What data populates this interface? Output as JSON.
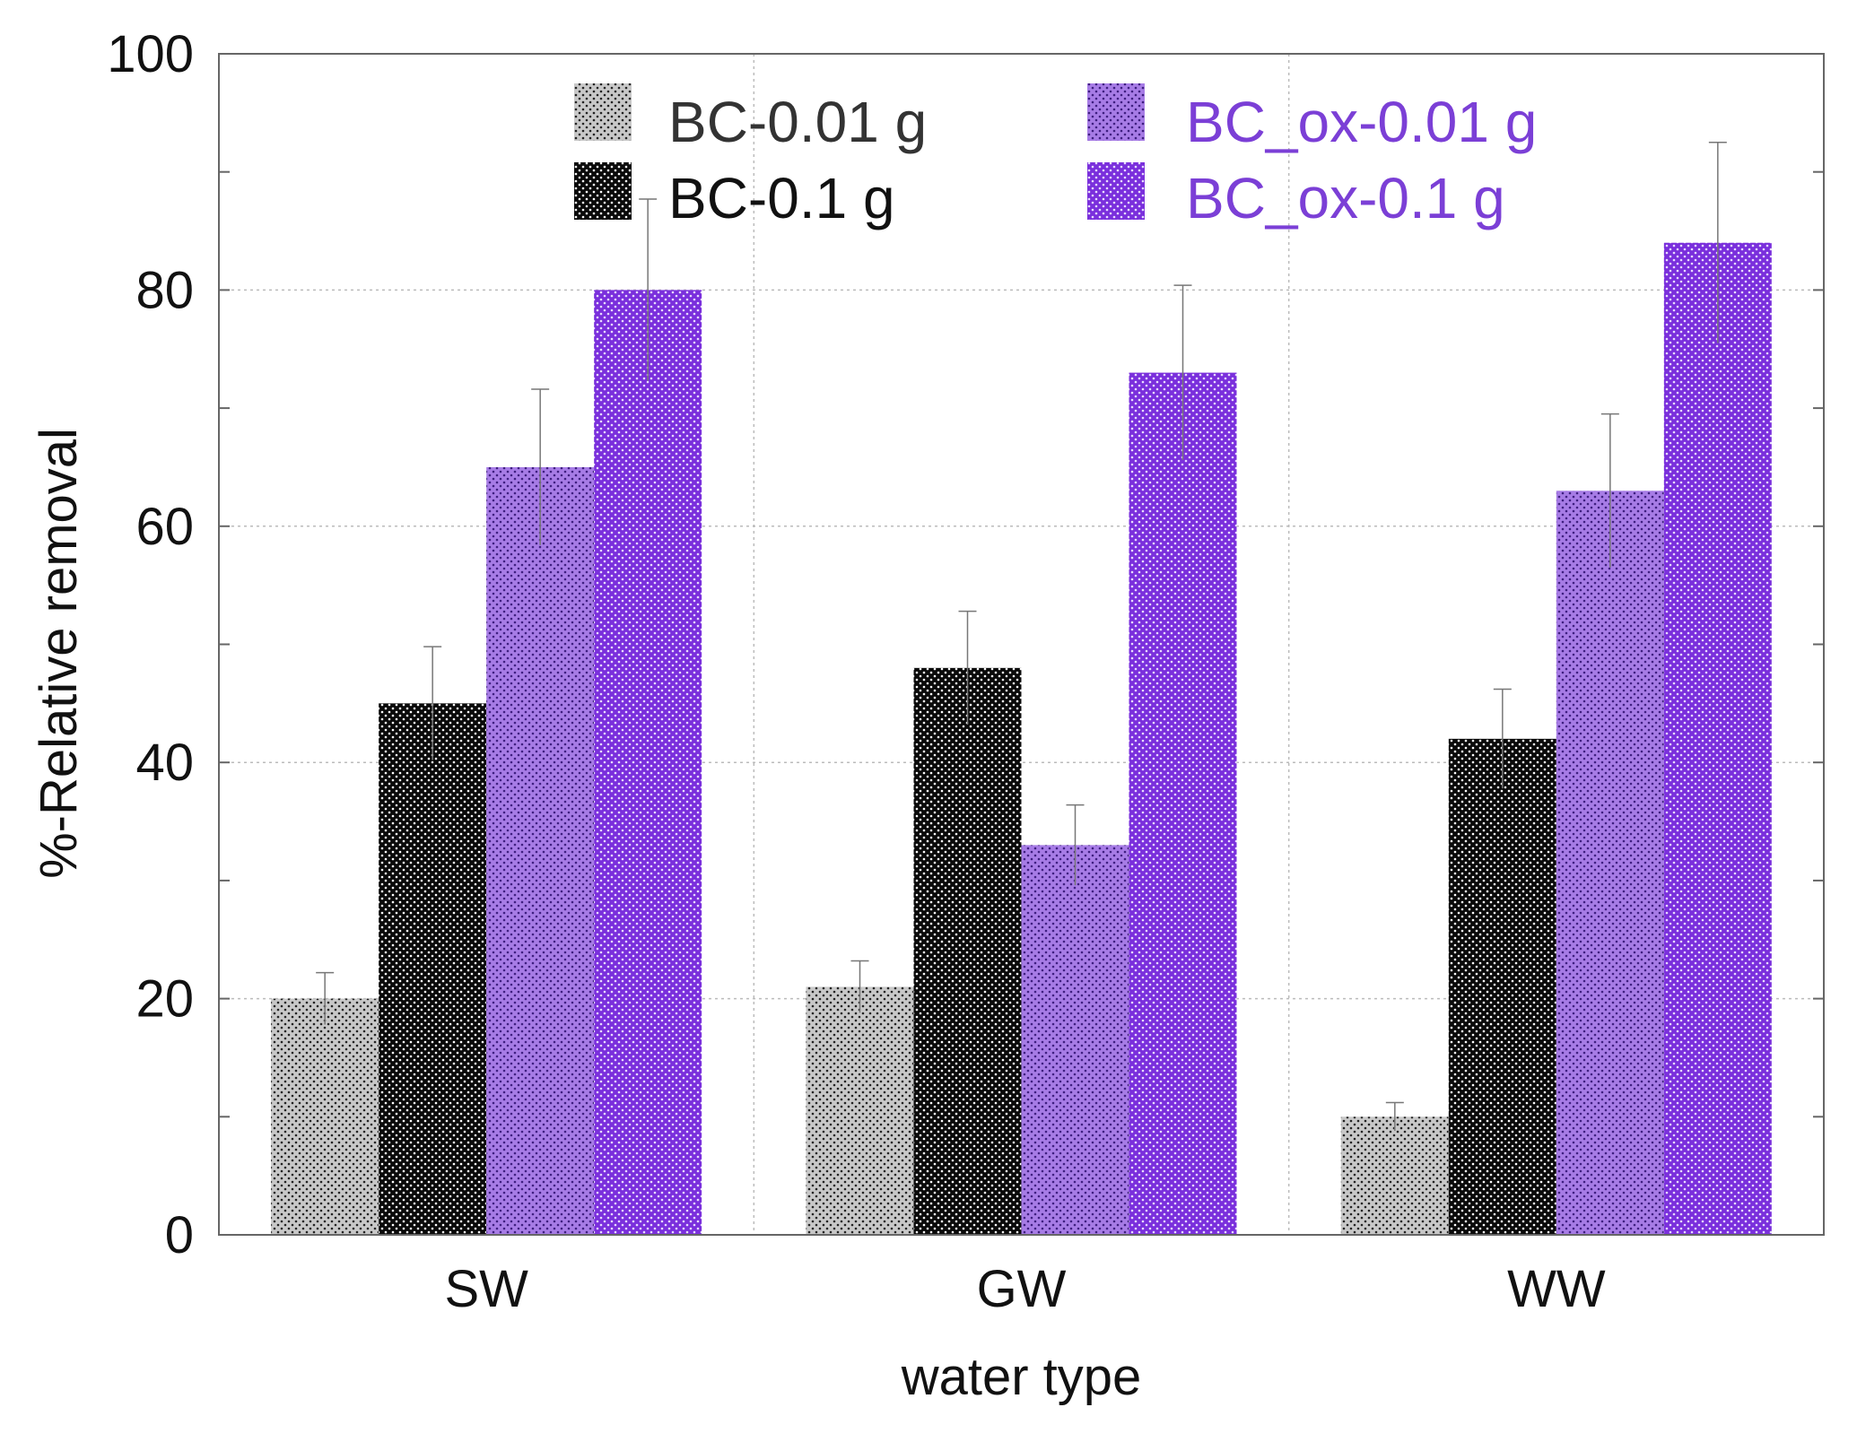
{
  "chart_data": {
    "type": "bar",
    "xlabel": "water type",
    "ylabel": "%-Relative removal",
    "ylim": [
      0,
      100
    ],
    "yticks": [
      0,
      20,
      40,
      60,
      80,
      100
    ],
    "categories": [
      "SW",
      "GW",
      "WW"
    ],
    "grid": true,
    "legend_position": "top",
    "series": [
      {
        "name": "BC-0.01 g",
        "values": [
          20,
          21,
          10
        ],
        "errors": [
          2.2,
          2.2,
          1.2
        ],
        "color": "#c8c8c8",
        "dot_color": "#222222",
        "label_color": "#333333"
      },
      {
        "name": "BC-0.1 g",
        "values": [
          45,
          48,
          42
        ],
        "errors": [
          4.8,
          4.8,
          4.2
        ],
        "color": "#0a0a0a",
        "dot_color": "#ffffff",
        "label_color": "#111111"
      },
      {
        "name": "BC_ox-0.01 g",
        "values": [
          65,
          33,
          63
        ],
        "errors": [
          6.6,
          3.4,
          6.5
        ],
        "color": "#a77ce6",
        "dot_color": "#3f1f80",
        "label_color": "#7b3fd6"
      },
      {
        "name": "BC_ox-0.1 g",
        "values": [
          80,
          73,
          84
        ],
        "errors": [
          7.7,
          7.4,
          8.5
        ],
        "color": "#7a2fdc",
        "dot_color": "#e8dcff",
        "label_color": "#7b3fd6"
      }
    ]
  }
}
